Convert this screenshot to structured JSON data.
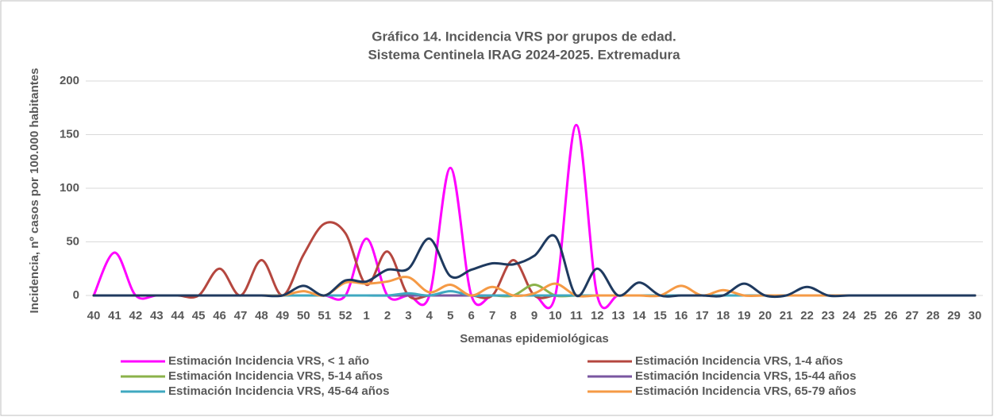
{
  "chart_data": {
    "type": "line",
    "title": "Gráfico 14. Incidencia VRS por grupos de edad.",
    "subtitle": "Sistema Centinela IRAG 2024-2025. Extremadura",
    "x_label": "Semanas epidemiológicas",
    "y_label": "Incidencia, nº casos por 100.000 habitantes",
    "categories": [
      "40",
      "41",
      "42",
      "43",
      "44",
      "45",
      "46",
      "47",
      "48",
      "49",
      "50",
      "51",
      "52",
      "1",
      "2",
      "3",
      "4",
      "5",
      "6",
      "7",
      "8",
      "9",
      "10",
      "11",
      "12",
      "13",
      "14",
      "15",
      "16",
      "17",
      "18",
      "19",
      "20",
      "21",
      "22",
      "23",
      "24",
      "25",
      "26",
      "27",
      "28",
      "29",
      "30"
    ],
    "ylim": [
      0,
      200
    ],
    "yticks": [
      0,
      50,
      100,
      150,
      200
    ],
    "grid": true,
    "series": [
      {
        "name": "Estimación Incidencia VRS, < 1 año",
        "color": "#ff00ff",
        "values": [
          0,
          40,
          0,
          0,
          0,
          0,
          0,
          0,
          0,
          0,
          0,
          0,
          0,
          53,
          0,
          0,
          0,
          119,
          0,
          0,
          0,
          0,
          0,
          159,
          0,
          0,
          0,
          0,
          0,
          0,
          0,
          0,
          0,
          0,
          0,
          0,
          0,
          0,
          0,
          0,
          0,
          0,
          0
        ]
      },
      {
        "name": "Estimación Incidencia VRS, 1-4 años",
        "color": "#b5473f",
        "values": [
          0,
          0,
          0,
          0,
          0,
          0,
          25,
          0,
          33,
          0,
          38,
          67,
          58,
          10,
          41,
          0,
          0,
          0,
          0,
          0,
          33,
          0,
          0,
          0,
          0,
          0,
          0,
          0,
          0,
          0,
          0,
          0,
          0,
          0,
          0,
          0,
          0,
          0,
          0,
          0,
          0,
          0,
          0
        ]
      },
      {
        "name": "Estimación Incidencia VRS, 5-14 años",
        "color": "#8bb24a",
        "values": [
          0,
          0,
          0,
          0,
          0,
          0,
          0,
          0,
          0,
          0,
          0,
          0,
          0,
          0,
          0,
          0,
          0,
          0,
          0,
          0,
          0,
          10,
          0,
          0,
          0,
          0,
          0,
          0,
          0,
          0,
          0,
          0,
          0,
          0,
          0,
          0,
          0,
          0,
          0,
          0,
          0,
          0,
          0
        ]
      },
      {
        "name": "Estimación Incidencia VRS, 15-44 años",
        "color": "#7a56a0",
        "values": [
          0,
          0,
          0,
          0,
          0,
          0,
          0,
          0,
          0,
          0,
          0,
          0,
          0,
          0,
          0,
          0,
          0,
          0,
          0,
          0,
          0,
          0,
          0,
          0,
          0,
          0,
          0,
          0,
          0,
          0,
          0,
          0,
          0,
          0,
          0,
          0,
          0,
          0,
          0,
          0,
          0,
          0,
          0
        ]
      },
      {
        "name": "Estimación Incidencia VRS, 45-64 años",
        "color": "#3fa8c0",
        "values": [
          0,
          0,
          0,
          0,
          0,
          0,
          0,
          0,
          0,
          0,
          0,
          0,
          0,
          0,
          0,
          2,
          0,
          4,
          0,
          0,
          0,
          0,
          0,
          0,
          0,
          0,
          0,
          0,
          0,
          0,
          0,
          0,
          0,
          0,
          0,
          0,
          0,
          0,
          0,
          0,
          0,
          0,
          0
        ]
      },
      {
        "name": "Estimación Incidencia VRS, 65-79 años",
        "color": "#f59a45",
        "values": [
          0,
          0,
          0,
          0,
          0,
          0,
          0,
          0,
          0,
          0,
          4,
          0,
          12,
          11,
          13,
          17,
          3,
          10,
          0,
          8,
          0,
          2,
          11,
          0,
          0,
          0,
          0,
          0,
          9,
          0,
          5,
          0,
          0,
          0,
          0,
          0,
          0,
          0,
          0,
          0,
          0,
          0,
          0
        ]
      },
      {
        "color": "#1f3a5f",
        "values": [
          0,
          0,
          0,
          0,
          0,
          0,
          0,
          0,
          0,
          0,
          9,
          0,
          14,
          13,
          24,
          25,
          53,
          18,
          24,
          30,
          29,
          37,
          55,
          0,
          25,
          0,
          12,
          0,
          0,
          0,
          0,
          11,
          0,
          0,
          8,
          0,
          0,
          0,
          0,
          0,
          0,
          0,
          0
        ]
      }
    ]
  }
}
